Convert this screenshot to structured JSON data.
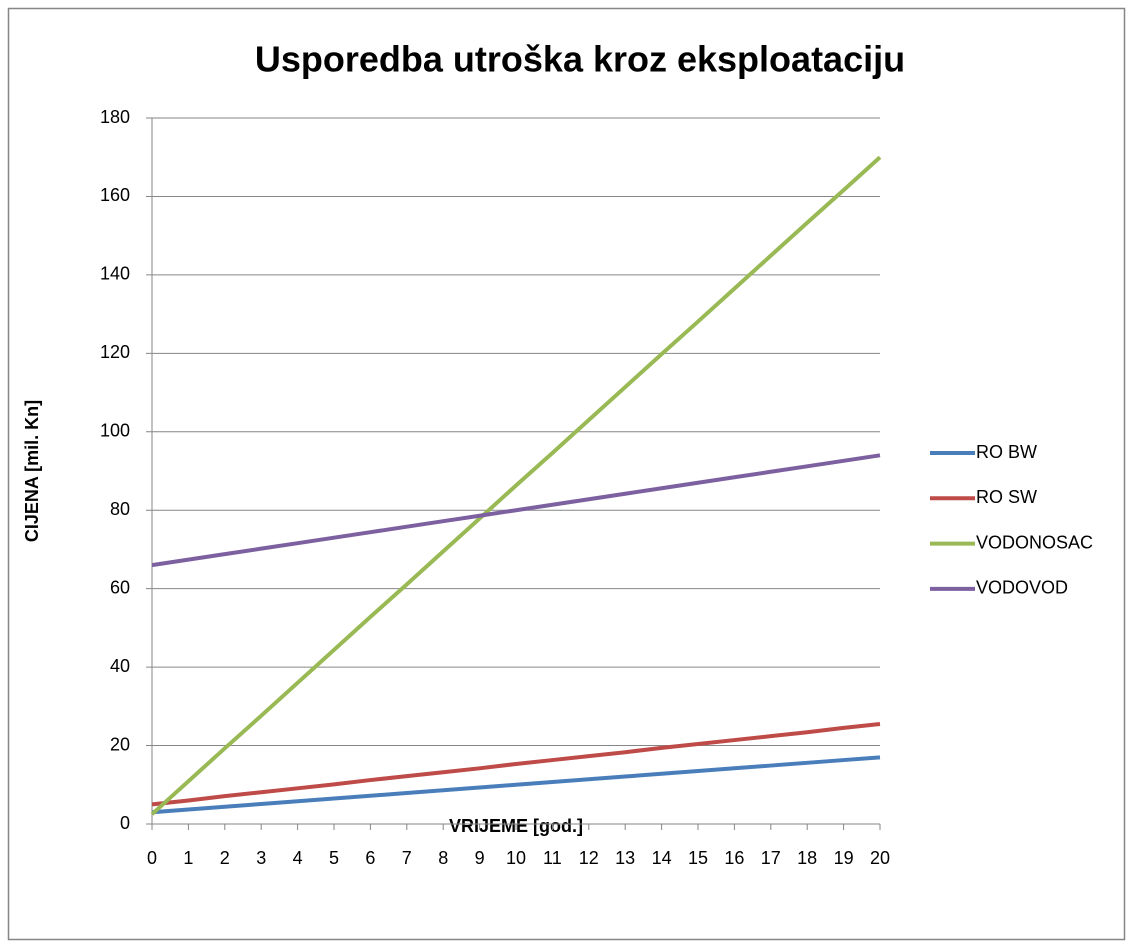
{
  "chart_data": {
    "type": "line",
    "title": "Usporedba utroška kroz eksploataciju",
    "x_label": "VRIJEME [god.]",
    "y_label": "CIJENA [mil. Kn]",
    "x": [
      0,
      1,
      2,
      3,
      4,
      5,
      6,
      7,
      8,
      9,
      10,
      11,
      12,
      13,
      14,
      15,
      16,
      17,
      18,
      19,
      20
    ],
    "xlim": [
      0,
      20
    ],
    "xticks": [
      0,
      1,
      2,
      3,
      4,
      5,
      6,
      7,
      8,
      9,
      10,
      11,
      12,
      13,
      14,
      15,
      16,
      17,
      18,
      19,
      20
    ],
    "ylim": [
      0,
      180
    ],
    "yticks": [
      0,
      20,
      40,
      60,
      80,
      100,
      120,
      140,
      160,
      180
    ],
    "grid": true,
    "legend": "right",
    "series": [
      {
        "name": "RO BW",
        "color": "#4a7ebb",
        "values": [
          3,
          3.7,
          4.4,
          5.1,
          5.8,
          6.5,
          7.2,
          7.9,
          8.6,
          9.3,
          10,
          10.7,
          11.4,
          12.1,
          12.8,
          13.5,
          14.2,
          14.9,
          15.6,
          16.3,
          17
        ]
      },
      {
        "name": "RO SW",
        "color": "#be4b48",
        "values": [
          5,
          6,
          7.1,
          8.1,
          9.1,
          10.1,
          11.2,
          12.2,
          13.2,
          14.2,
          15.3,
          16.3,
          17.3,
          18.3,
          19.4,
          20.4,
          21.4,
          22.4,
          23.4,
          24.5,
          25.5
        ]
      },
      {
        "name": "VODONOSAC",
        "color": "#98b954",
        "values": [
          2.5,
          10.9,
          19.3,
          27.6,
          36,
          44.4,
          52.8,
          61.1,
          69.5,
          77.9,
          86.3,
          94.6,
          103,
          111.4,
          119.8,
          128.1,
          136.5,
          144.9,
          153.3,
          161.6,
          170
        ]
      },
      {
        "name": "VODOVOD",
        "color": "#7d60a0",
        "values": [
          66,
          67.4,
          68.8,
          70.2,
          71.6,
          73,
          74.4,
          75.8,
          77.2,
          78.6,
          80,
          81.4,
          82.8,
          84.2,
          85.6,
          87,
          88.4,
          89.8,
          91.2,
          92.6,
          94
        ]
      }
    ]
  }
}
